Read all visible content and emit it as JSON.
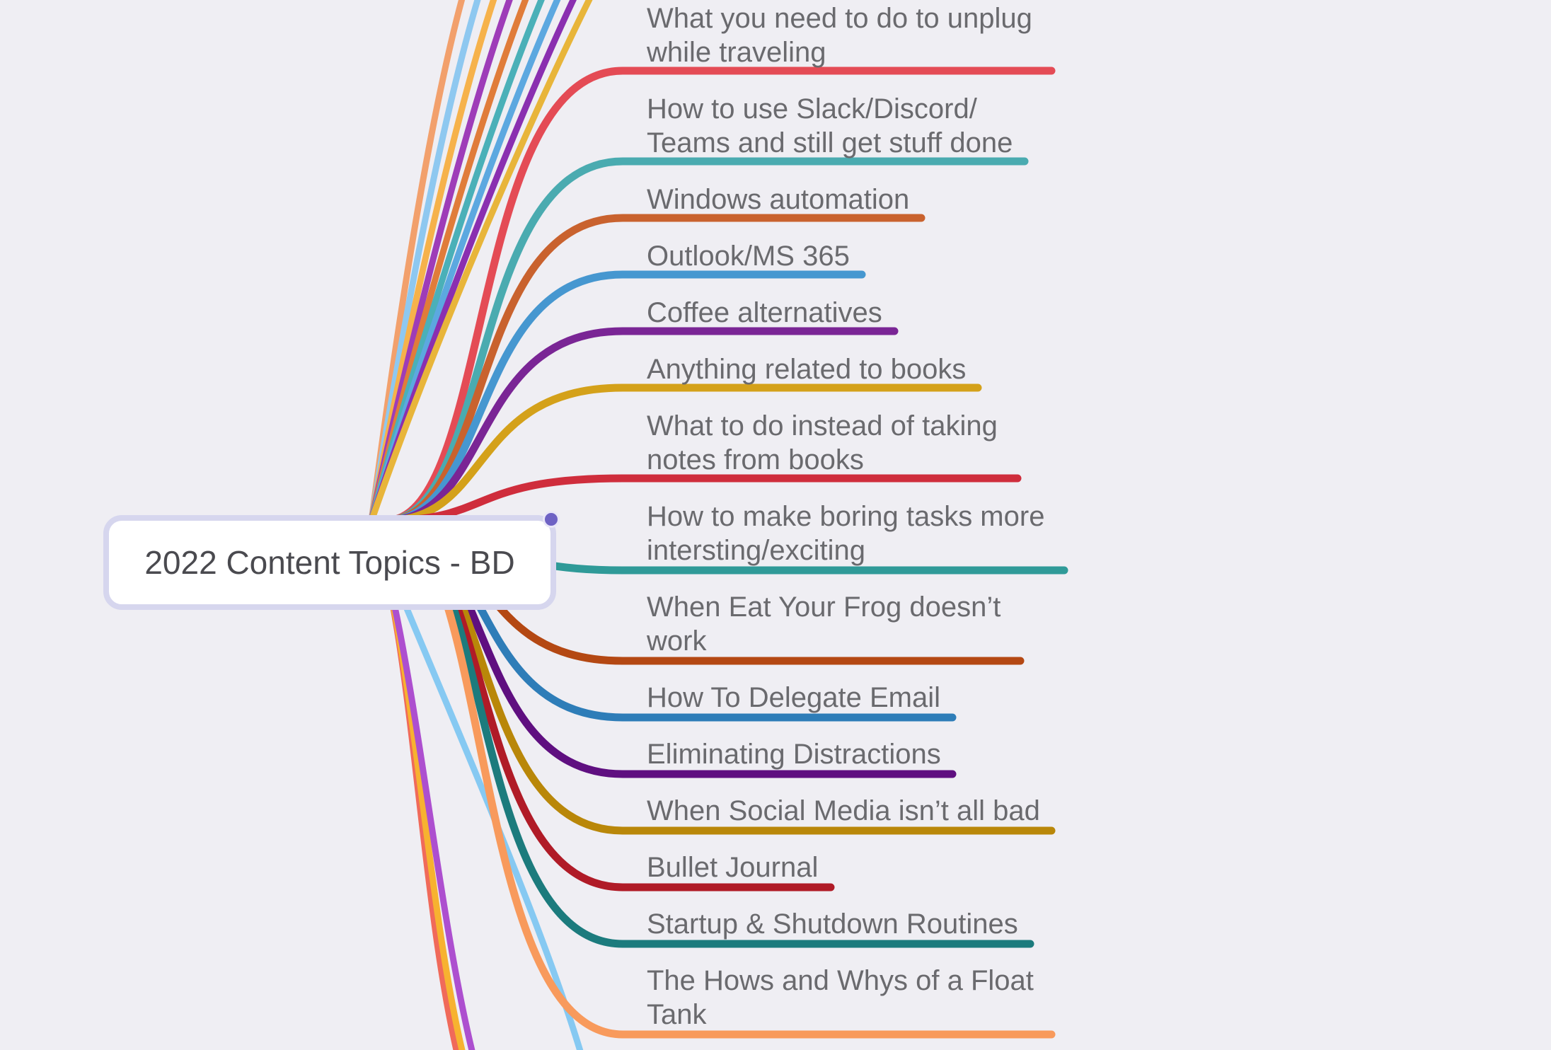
{
  "root": {
    "label": "2022 Content Topics - BD"
  },
  "branches": [
    {
      "label": "What you need to do to unplug\nwhile traveling",
      "color": "#e44b55"
    },
    {
      "label": "How to use Slack/Discord/\nTeams and still get stuff done",
      "color": "#4aabb0"
    },
    {
      "label": "Windows automation",
      "color": "#c9622e"
    },
    {
      "label": "Outlook/MS 365",
      "color": "#4697d0"
    },
    {
      "label": "Coffee alternatives",
      "color": "#7a2595"
    },
    {
      "label": "Anything related to books",
      "color": "#d4a11a"
    },
    {
      "label": "What to do instead of taking\nnotes from books",
      "color": "#cf2d3c"
    },
    {
      "label": "How to make boring tasks more\nintersting/exciting",
      "color": "#2f9a98"
    },
    {
      "label": "When Eat Your Frog doesn’t\nwork",
      "color": "#b44813"
    },
    {
      "label": "How To Delegate Email",
      "color": "#2e7db8"
    },
    {
      "label": "Eliminating Distractions",
      "color": "#5f0f80"
    },
    {
      "label": "When Social Media isn’t all bad",
      "color": "#b98709"
    },
    {
      "label": "Bullet Journal",
      "color": "#b01b27"
    },
    {
      "label": "Startup & Shutdown Routines",
      "color": "#1c7b7d"
    },
    {
      "label": "The Hows and Whys of a Float\nTank",
      "color": "#f89a5c"
    }
  ],
  "offscreen_branch_colors": {
    "above": [
      "#f2a06c",
      "#8ec8f0",
      "#f6b24b",
      "#9e3cb8",
      "#e07c3a",
      "#4ab0b8",
      "#5ca8e0",
      "#8a2fb0",
      "#e8b53a"
    ],
    "below": [
      "#f06a5a",
      "#f7b230",
      "#ad4fcf",
      "#86c9f2"
    ]
  }
}
